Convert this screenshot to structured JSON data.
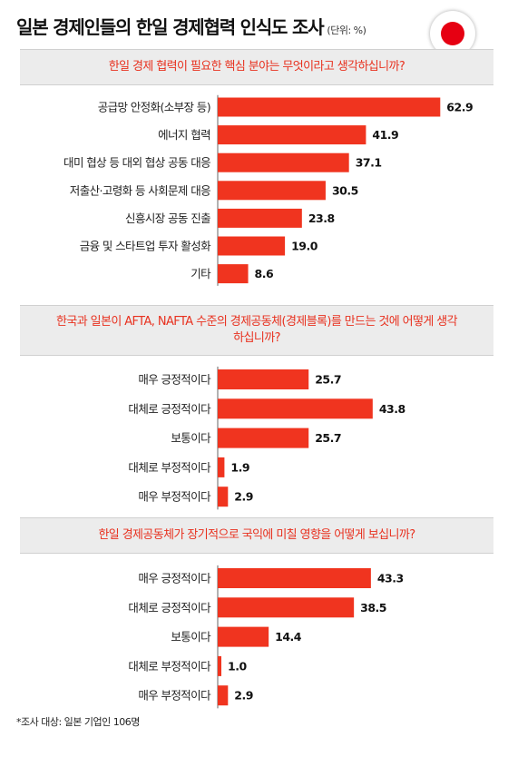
{
  "header": {
    "title": "일본 경제인들의 한일 경제협력 인식도 조사",
    "unit": "(단위: %)"
  },
  "colors": {
    "bar": "#f0341f",
    "question": "#e8311f",
    "box": "#ececec",
    "flag_red": "#e60012"
  },
  "chart_data": [
    {
      "type": "bar",
      "orientation": "horizontal",
      "question": "한일 경제 협력이 필요한 핵심 분야는 무엇이라고 생각하십니까?",
      "categories": [
        "공급망 안정화(소부장 등)",
        "에너지 협력",
        "대미 협상 등 대외 협상 공동 대응",
        "저출산·고령화 등 사회문제 대응",
        "신흥시장 공동 진출",
        "금융 및 스타트업 투자 활성화",
        "기타"
      ],
      "values": [
        62.9,
        41.9,
        37.1,
        30.5,
        23.8,
        19.0,
        8.6
      ],
      "labels": [
        "62.9",
        "41.9",
        "37.1",
        "30.5",
        "23.8",
        "19.0",
        "8.6"
      ]
    },
    {
      "type": "bar",
      "orientation": "horizontal",
      "question": "한국과 일본이 AFTA, NAFTA 수준의 경제공동체(경제블록)를 만드는 것에 어떻게 생각하십니까?",
      "categories": [
        "매우 긍정적이다",
        "대체로 긍정적이다",
        "보통이다",
        "대체로 부정적이다",
        "매우 부정적이다"
      ],
      "values": [
        25.7,
        43.8,
        25.7,
        1.9,
        2.9
      ],
      "labels": [
        "25.7",
        "43.8",
        "25.7",
        "1.9",
        "2.9"
      ]
    },
    {
      "type": "bar",
      "orientation": "horizontal",
      "question": "한일 경제공동체가 장기적으로 국익에 미칠 영향을 어떻게 보십니까?",
      "categories": [
        "매우 긍정적이다",
        "대체로 긍정적이다",
        "보통이다",
        "대체로 부정적이다",
        "매우 부정적이다"
      ],
      "values": [
        43.3,
        38.5,
        14.4,
        1.0,
        2.9
      ],
      "labels": [
        "43.3",
        "38.5",
        "14.4",
        "1.0",
        "2.9"
      ]
    }
  ],
  "footnote": "*조사 대상: 일본 기업인 106명"
}
